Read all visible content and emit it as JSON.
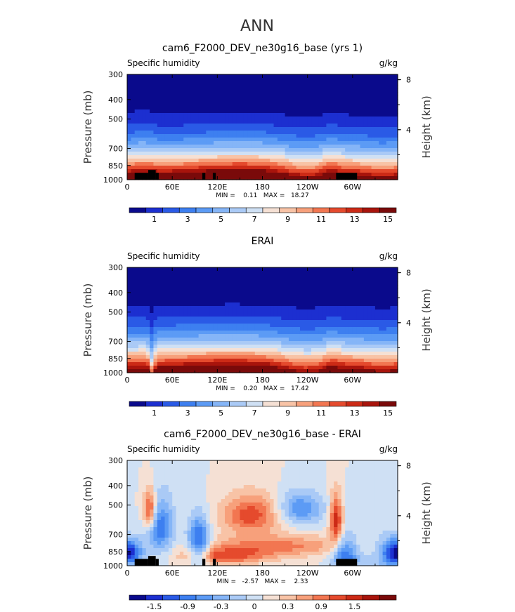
{
  "figure": {
    "title": "ANN"
  },
  "colors": {
    "black": "#000000",
    "scale": [
      "#0a0a8c",
      "#1c2fd0",
      "#2a5ae6",
      "#3d7ff0",
      "#5c9bf5",
      "#85b5f7",
      "#aacaf6",
      "#cfe0f4",
      "#f5e0d4",
      "#f8c3a6",
      "#f7a07b",
      "#f27651",
      "#e54a2d",
      "#cc2a16",
      "#a8140c",
      "#7a0a0a"
    ]
  },
  "chart_data": [
    {
      "type": "heatmap",
      "title": "cam6_F2000_DEV_ne30g16_base (yrs 1)",
      "left_label": "Specific humidity",
      "right_label": "g/kg",
      "ylabel": "Pressure (mb)",
      "y2label": "Height (km)",
      "x_ticks": [
        "0",
        "60E",
        "120E",
        "180",
        "120W",
        "60W"
      ],
      "x_tick_values": [
        0,
        60,
        120,
        180,
        240,
        300
      ],
      "xlim": [
        0,
        360
      ],
      "y_ticks": [
        "300",
        "400",
        "500",
        "700",
        "850",
        "1000"
      ],
      "y_tick_values": [
        300,
        400,
        500,
        700,
        850,
        1000
      ],
      "y2_ticks": [
        "8",
        "4"
      ],
      "y2_tick_values": [
        8,
        4
      ],
      "ylim": [
        300,
        1000
      ],
      "stats": "MIN =    0.11   MAX =   18.27",
      "min": 0.11,
      "max": 18.27,
      "colorbar_ticks": [
        "1",
        "3",
        "5",
        "7",
        "9",
        "11",
        "13",
        "15"
      ],
      "colorbar_first_tick_index": 1,
      "colorbar_colors": [
        "#0a0a8c",
        "#1c2fd0",
        "#2a5ae6",
        "#3d7ff0",
        "#5c9bf5",
        "#85b5f7",
        "#aacaf6",
        "#cfe0f4",
        "#f5e0d4",
        "#f8c3a6",
        "#f7a07b",
        "#f27651",
        "#e54a2d",
        "#cc2a16",
        "#a8140c",
        "#7a0a0a"
      ],
      "mode": "base",
      "field_desc": "equatorial specific humidity cross-section, max near surface",
      "topography": [
        {
          "lon0": 10,
          "lon1": 28,
          "p": 925
        },
        {
          "lon0": 28,
          "lon1": 38,
          "p": 895
        },
        {
          "lon0": 38,
          "lon1": 42,
          "p": 925
        },
        {
          "lon0": 100,
          "lon1": 104,
          "p": 925
        },
        {
          "lon0": 114,
          "lon1": 118,
          "p": 925
        },
        {
          "lon0": 278,
          "lon1": 306,
          "p": 925
        }
      ]
    },
    {
      "type": "heatmap",
      "title": "ERAI",
      "left_label": "Specific humidity",
      "right_label": "g/kg",
      "ylabel": "Pressure (mb)",
      "y2label": "Height (km)",
      "x_ticks": [
        "0",
        "60E",
        "120E",
        "180",
        "120W",
        "60W"
      ],
      "x_tick_values": [
        0,
        60,
        120,
        180,
        240,
        300
      ],
      "xlim": [
        0,
        360
      ],
      "y_ticks": [
        "300",
        "400",
        "500",
        "700",
        "850",
        "1000"
      ],
      "y_tick_values": [
        300,
        400,
        500,
        700,
        850,
        1000
      ],
      "y2_ticks": [
        "8",
        "4"
      ],
      "y2_tick_values": [
        8,
        4
      ],
      "ylim": [
        300,
        1000
      ],
      "stats": "MIN =    0.20   MAX =   17.42",
      "min": 0.2,
      "max": 17.42,
      "colorbar_ticks": [
        "1",
        "3",
        "5",
        "7",
        "9",
        "11",
        "13",
        "15"
      ],
      "colorbar_first_tick_index": 1,
      "colorbar_colors": [
        "#0a0a8c",
        "#1c2fd0",
        "#2a5ae6",
        "#3d7ff0",
        "#5c9bf5",
        "#85b5f7",
        "#aacaf6",
        "#cfe0f4",
        "#f5e0d4",
        "#f8c3a6",
        "#f7a07b",
        "#f27651",
        "#e54a2d",
        "#cc2a16",
        "#a8140c",
        "#7a0a0a"
      ],
      "mode": "obs",
      "topography": []
    },
    {
      "type": "heatmap",
      "title": "cam6_F2000_DEV_ne30g16_base - ERAI",
      "left_label": "Specific humidity",
      "right_label": "g/kg",
      "ylabel": "Pressure (mb)",
      "y2label": "Height (km)",
      "x_ticks": [
        "0",
        "60E",
        "120E",
        "180",
        "120W",
        "60W"
      ],
      "x_tick_values": [
        0,
        60,
        120,
        180,
        240,
        300
      ],
      "xlim": [
        0,
        360
      ],
      "y_ticks": [
        "300",
        "400",
        "500",
        "700",
        "850",
        "1000"
      ],
      "y_tick_values": [
        300,
        400,
        500,
        700,
        850,
        1000
      ],
      "y2_ticks": [
        "8",
        "4"
      ],
      "y2_tick_values": [
        8,
        4
      ],
      "ylim": [
        300,
        1000
      ],
      "stats": "MIN =   -2.57   MAX =    2.33",
      "min": -2.57,
      "max": 2.33,
      "colorbar_ticks": [
        "-1.5",
        "-0.9",
        "-0.3",
        "0",
        "0.3",
        "0.9",
        "1.5"
      ],
      "colorbar_first_tick_index": 1,
      "colorbar_tick_step": 2,
      "colorbar_colors": [
        "#0a0a8c",
        "#1c2fd0",
        "#2a5ae6",
        "#3d7ff0",
        "#5c9bf5",
        "#85b5f7",
        "#aacaf6",
        "#cfe0f4",
        "#f5e0d4",
        "#f8c3a6",
        "#f7a07b",
        "#f27651",
        "#e54a2d",
        "#cc2a16",
        "#a8140c",
        "#7a0a0a"
      ],
      "mode": "diff",
      "topography": [
        {
          "lon0": 10,
          "lon1": 28,
          "p": 925
        },
        {
          "lon0": 28,
          "lon1": 38,
          "p": 895
        },
        {
          "lon0": 38,
          "lon1": 42,
          "p": 925
        },
        {
          "lon0": 100,
          "lon1": 104,
          "p": 925
        },
        {
          "lon0": 114,
          "lon1": 118,
          "p": 925
        },
        {
          "lon0": 278,
          "lon1": 306,
          "p": 925
        }
      ]
    }
  ]
}
